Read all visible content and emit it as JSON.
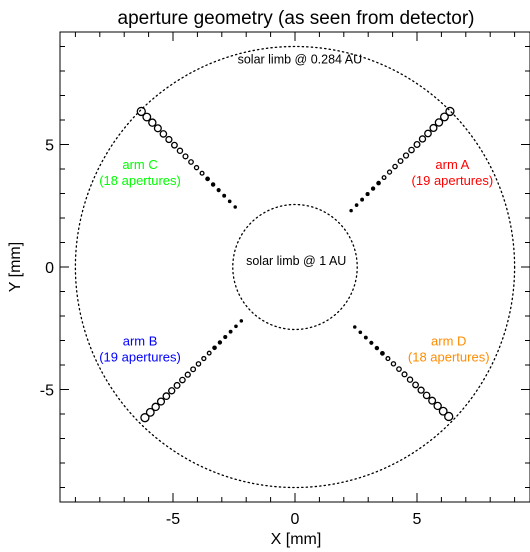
{
  "chart_data": {
    "type": "scatter",
    "title": "aperture geometry (as seen from detector)",
    "xlabel": "X [mm]",
    "ylabel": "Y [mm]",
    "xlim": [
      -9.5,
      9.5
    ],
    "ylim": [
      -9.8,
      9.6
    ],
    "x_ticks": [
      -5,
      0,
      5
    ],
    "y_ticks": [
      -5,
      0,
      5
    ],
    "x_tick_labels": [
      "-5",
      "0",
      "5"
    ],
    "y_tick_labels": [
      "-5",
      "0",
      "5"
    ],
    "grid": false,
    "circles": [
      {
        "label": "solar limb @ 0.284 AU",
        "radius": 9.0,
        "style": "dotted",
        "color": "#000000"
      },
      {
        "label": "solar limb @ 1 AU",
        "radius": 2.55,
        "style": "dotted",
        "color": "#000000"
      }
    ],
    "arms": [
      {
        "key": "A",
        "name": "arm A",
        "count_label": "(19 apertures)",
        "count": 19,
        "color": "#ff0000",
        "start": [
          2.3,
          2.3
        ],
        "end": [
          6.35,
          6.35
        ]
      },
      {
        "key": "B",
        "name": "arm B",
        "count_label": "(19 apertures)",
        "count": 19,
        "color": "#0000ff",
        "start": [
          -2.2,
          -2.2
        ],
        "end": [
          -6.15,
          -6.15
        ]
      },
      {
        "key": "C",
        "name": "arm C",
        "count_label": "(18 apertures)",
        "count": 18,
        "color": "#00ff00",
        "start": [
          -2.45,
          2.45
        ],
        "end": [
          -6.3,
          6.35
        ]
      },
      {
        "key": "D",
        "name": "arm D",
        "count_label": "(18 apertures)",
        "count": 18,
        "color": "#ff8c00",
        "start": [
          2.45,
          -2.45
        ],
        "end": [
          6.3,
          -6.1
        ]
      }
    ]
  }
}
